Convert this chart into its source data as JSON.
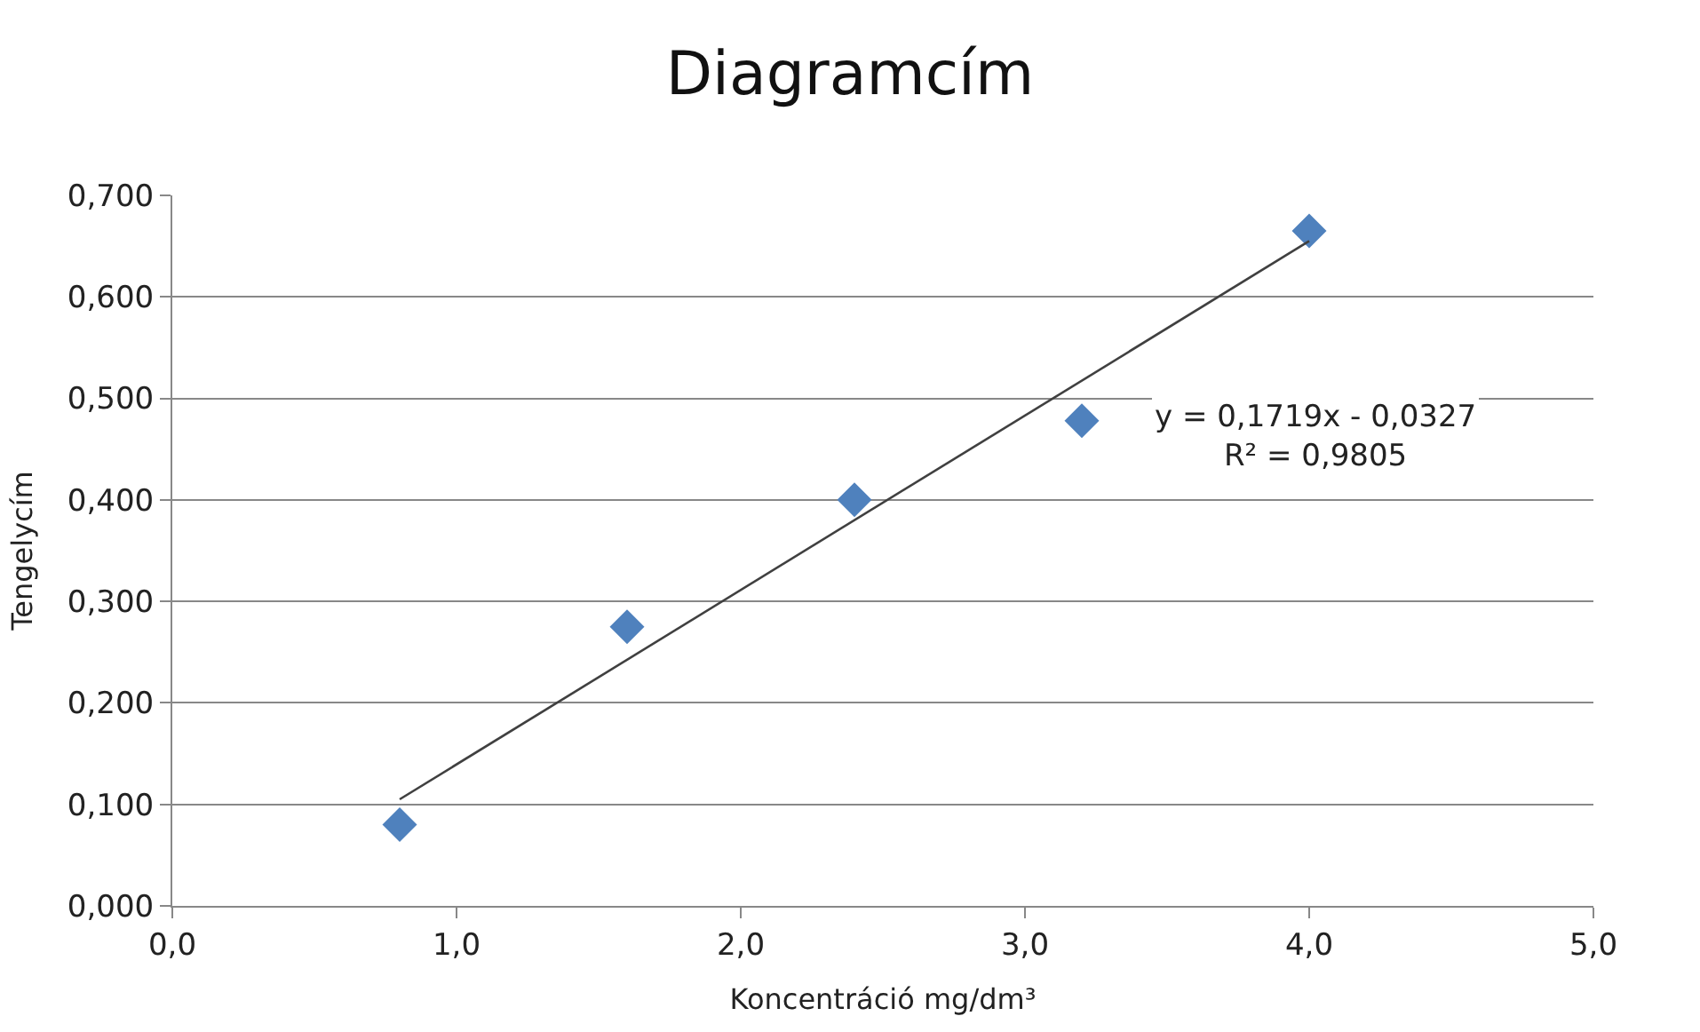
{
  "chart_data": {
    "type": "scatter",
    "title": "Diagramcím",
    "xlabel": "Koncentráció mg/dm³",
    "ylabel": "Tengelycím",
    "series": [
      {
        "color": "#4f81bd",
        "marker": "diamond",
        "x": [
          0.8,
          1.6,
          2.4,
          3.2,
          4.0
        ],
        "values": [
          0.08,
          0.275,
          0.4,
          0.478,
          0.665
        ]
      },
      {
        "type": "line",
        "color": "#404040",
        "marker": "none",
        "line_style": "solid",
        "x": [
          0.8,
          4.0
        ],
        "values": [
          0.105,
          0.655
        ]
      }
    ],
    "annotations": [
      "y = 0,1719x - 0,0327\nR² = 0,9805"
    ],
    "xlim": [
      0,
      5
    ],
    "xticks": [
      {
        "value": 0,
        "label": "0,0"
      },
      {
        "value": 1,
        "label": "1,0"
      },
      {
        "value": 2,
        "label": "2,0"
      },
      {
        "value": 3,
        "label": "3,0"
      },
      {
        "value": 4,
        "label": "4,0"
      },
      {
        "value": 5,
        "label": "5,0"
      }
    ],
    "ylim": [
      0,
      0.7
    ],
    "yticks": [
      {
        "value": 0,
        "label": "0,000"
      },
      {
        "value": 0.1,
        "label": "0,100"
      },
      {
        "value": 0.2,
        "label": "0,200"
      },
      {
        "value": 0.3,
        "label": "0,300"
      },
      {
        "value": 0.4,
        "label": "0,400"
      },
      {
        "value": 0.5,
        "label": "0,500"
      },
      {
        "value": 0.6,
        "label": "0,600"
      },
      {
        "value": 0.7,
        "label": "0,700"
      }
    ],
    "grid": "y"
  }
}
